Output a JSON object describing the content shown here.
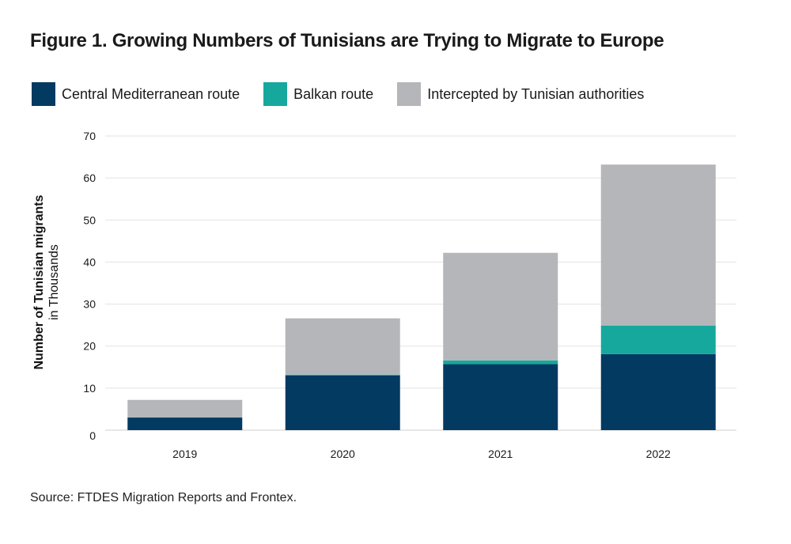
{
  "chart_data": {
    "type": "bar",
    "stacked": true,
    "title": "Figure 1.  Growing Numbers of Tunisians are Trying to Migrate to Europe",
    "categories": [
      "2019",
      "2020",
      "2021",
      "2022"
    ],
    "series": [
      {
        "name": "Central Mediterranean route",
        "color": "#033a62",
        "values": [
          3.0,
          13.0,
          15.7,
          18.1
        ]
      },
      {
        "name": "Balkan route",
        "color": "#16a89d",
        "values": [
          0.0,
          0.2,
          0.9,
          6.8
        ]
      },
      {
        "name": "Intercepted by Tunisian authorities",
        "color": "#b5b6ba",
        "values": [
          4.2,
          13.4,
          25.6,
          38.3
        ]
      }
    ],
    "ylabel": "Number of Tunisian migrants",
    "ylabel_sub": "in Thousands",
    "ylim": [
      0,
      70
    ],
    "yticks": [
      "0",
      "10",
      "20",
      "30",
      "40",
      "50",
      "60",
      "70"
    ],
    "grid": true,
    "legend_position": "top"
  },
  "source": "Source: FTDES Migration Reports and Frontex."
}
